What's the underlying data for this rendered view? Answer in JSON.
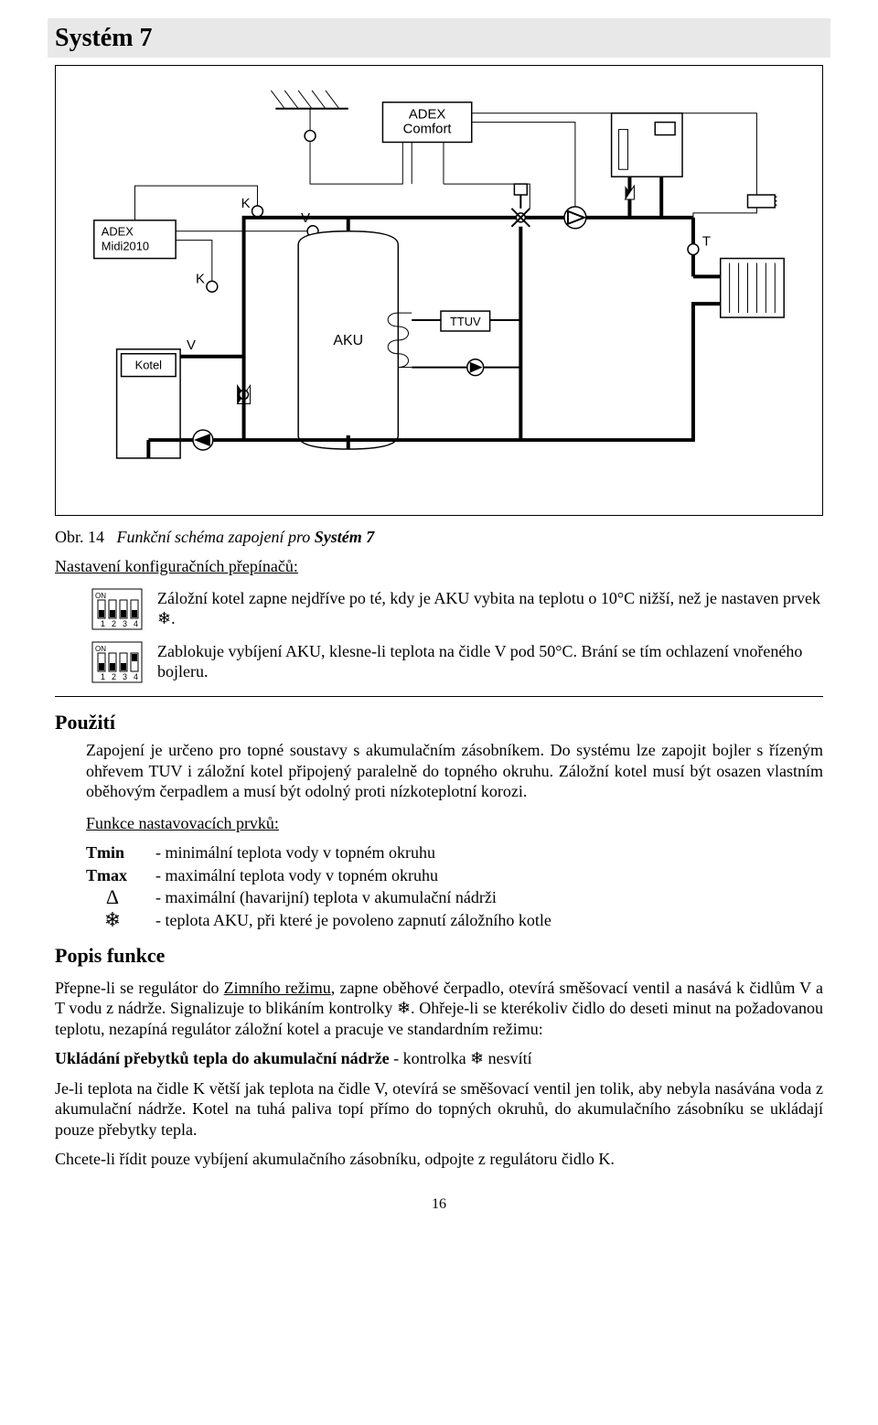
{
  "header": {
    "title": "Systém 7"
  },
  "caption": {
    "obr": "Obr. 14",
    "desc_pre": "Funkční schéma zapojení pro ",
    "desc_bold": "Systém 7"
  },
  "subhead": {
    "text": "Nastavení konfiguračních přepínačů:"
  },
  "dip": {
    "on_label": "ON",
    "ticks": [
      "1",
      "2",
      "3",
      "4"
    ],
    "row1": {
      "pattern": [
        0,
        0,
        0,
        0
      ],
      "text": "Záložní kotel zapne nejdříve po té, kdy je AKU vybita na teplotu o 10°C nižší, než je nastaven prvek ❄."
    },
    "row2": {
      "pattern": [
        0,
        0,
        0,
        1
      ],
      "text": "Zablokuje vybíjení AKU, klesne-li teplota na čidle V pod 50°C. Brání se tím ochlazení vnořeného bojleru."
    }
  },
  "use": {
    "heading": "Použití",
    "body": "Zapojení je určeno pro topné soustavy s akumulačním zásobníkem. Do systému lze zapojit bojler s řízeným ohřevem TUV i záložní kotel připojený paralelně do topného okruhu. Záložní kotel musí být osazen vlastním oběhovým čerpadlem a musí být odolný proti nízkoteplotní korozi."
  },
  "func_prvku": {
    "heading": "Funkce nastavovacích prvků:",
    "rows": [
      {
        "key": "Tmin",
        "desc": "- minimální teplota vody v topném okruhu"
      },
      {
        "key": "Tmax",
        "desc": "- maximální teplota vody v topném okruhu"
      },
      {
        "key": "Δ",
        "desc": "- maximální (havarijní) teplota v akumulační nádrži"
      },
      {
        "key": "❄",
        "desc": "- teplota AKU, při které je povoleno zapnutí záložního kotle"
      }
    ]
  },
  "popis": {
    "heading": "Popis funkce",
    "para1_pre": "Přepne-li se regulátor do ",
    "para1_u": "Zimního režimu",
    "para1_post": ", zapne oběhové čerpadlo, otevírá směšovací ventil a nasává k čidlům V a T vodu z nádrže. Signalizuje to blikáním kontrolky ❄. Ohřeje-li se kterékoliv čidlo do deseti minut na požadovanou teplotu, nezapíná regulátor záložní kotel a pracuje ve standardním režimu:",
    "sub_heading": "Ukládání přebytků tepla do akumulační nádrže",
    "sub_heading_tail": "   - kontrolka ❄ nesvítí",
    "para2": "Je-li teplota na čidle K větší jak teplota na čidle V, otevírá se směšovací ventil jen tolik, aby nebyla nasávána voda z akumulační nádrže. Kotel na tuhá paliva topí přímo do topných okruhů, do akumulačního zásobníku se ukládají pouze přebytky tepla.",
    "para3": "Chcete-li řídit pouze vybíjení akumulačního zásobníku, odpojte z regulátoru čidlo K."
  },
  "diagram_labels": {
    "adex_midi": "ADEX Midi2010",
    "adex_comfort": "ADEX Comfort",
    "kotel": "Kotel",
    "aku": "AKU",
    "ttuv": "TTUV",
    "K": "K",
    "V": "V",
    "T": "T"
  },
  "page_number": "16",
  "colors": {
    "bg": "#ffffff",
    "text": "#000000",
    "header_bg": "#e8e8e8",
    "line": "#000000"
  }
}
